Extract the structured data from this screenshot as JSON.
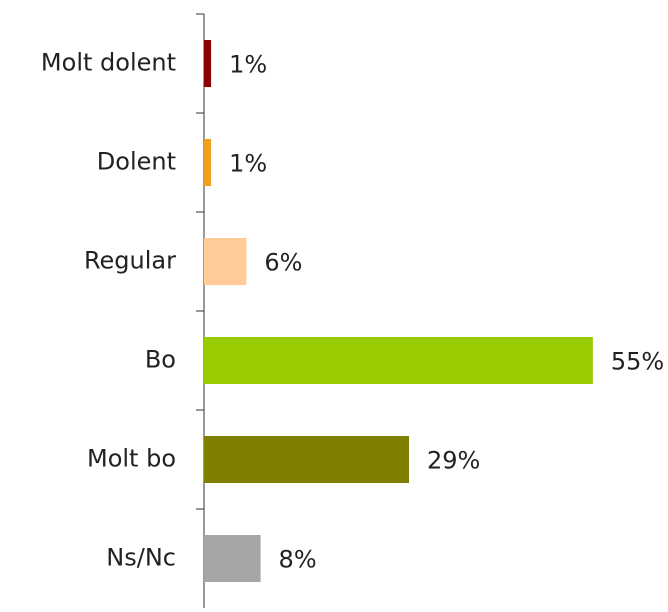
{
  "chart_data": {
    "type": "barh",
    "categories": [
      "Molt dolent",
      "Dolent",
      "Regular",
      "Bo",
      "Molt bo",
      "Ns/Nc"
    ],
    "values": [
      1,
      1,
      6,
      55,
      29,
      8
    ],
    "value_labels": [
      "1%",
      "1%",
      "6%",
      "55%",
      "29%",
      "8%"
    ],
    "colors": [
      "#8b0000",
      "#f0a020",
      "#ffcc99",
      "#99cc00",
      "#808000",
      "#a6a6a6"
    ]
  }
}
